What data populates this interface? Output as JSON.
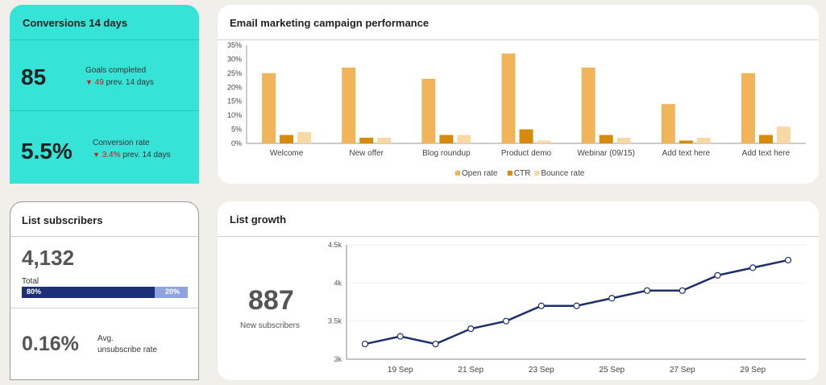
{
  "conversions": {
    "title": "Conversions  14 days",
    "goals_value": "85",
    "goals_label": "Goals completed",
    "goals_prev_value": "49",
    "goals_prev_text": "prev.  14 days",
    "rate_value": "5.5%",
    "rate_label": "Conversion  rate",
    "rate_prev_value": "3.4%",
    "rate_prev_text": "prev.  14 days",
    "down_arrow": "▼"
  },
  "subscribers": {
    "title": "List subscribers",
    "total_value": "4,132",
    "total_label": "Total",
    "bar_left_label": "80%",
    "bar_right_label": "20%",
    "bar_fraction": 0.8,
    "unsub_value": "0.16%",
    "unsub_label_1": "Avg.",
    "unsub_label_2": "unsubscribe rate"
  },
  "email_chart": {
    "title": "Email marketing campaign performance"
  },
  "growth": {
    "title": "List growth",
    "new_value": "887",
    "new_label": "New subscribers"
  },
  "colors": {
    "teal": "#35e4d6",
    "open_rate": "#f0b45a",
    "ctr": "#d68b0c",
    "bounce": "#f7d9a6",
    "line": "#1e2f6e",
    "bar_dark": "#1e2f78",
    "bar_light": "#8fa3e0"
  },
  "chart_data": [
    {
      "type": "bar",
      "title": "Email marketing campaign performance",
      "categories": [
        "Welcome",
        "New offer",
        "Blog roundup",
        "Product demo",
        "Webinar (09/15)",
        "Add text here",
        "Add text here"
      ],
      "series": [
        {
          "name": "Open rate",
          "values": [
            25,
            27,
            23,
            32,
            27,
            14,
            25
          ]
        },
        {
          "name": "CTR",
          "values": [
            3,
            2,
            3,
            5,
            3,
            1,
            3
          ]
        },
        {
          "name": "Bounce rate",
          "values": [
            4,
            2,
            3,
            1,
            2,
            2,
            6
          ]
        }
      ],
      "ylim": [
        0,
        35
      ],
      "yticks": [
        "0%",
        "5%",
        "10%",
        "15%",
        "20%",
        "25%",
        "30%",
        "35%"
      ],
      "legend": "bottom"
    },
    {
      "type": "line",
      "title": "List growth",
      "x": [
        "18 Sep",
        "19 Sep",
        "20 Sep",
        "21 Sep",
        "22 Sep",
        "23 Sep",
        "24 Sep",
        "25 Sep",
        "26 Sep",
        "27 Sep",
        "28 Sep",
        "29 Sep",
        "30 Sep"
      ],
      "xticks": [
        "19 Sep",
        "21 Sep",
        "23 Sep",
        "25 Sep",
        "27 Sep",
        "29 Sep"
      ],
      "values": [
        3200,
        3300,
        3200,
        3400,
        3500,
        3700,
        3700,
        3800,
        3900,
        3900,
        4100,
        4200,
        4300
      ],
      "ylim": [
        3000,
        4500
      ],
      "yticks": [
        "3k",
        "3.5k",
        "4k",
        "4.5k"
      ],
      "grid": true
    }
  ]
}
